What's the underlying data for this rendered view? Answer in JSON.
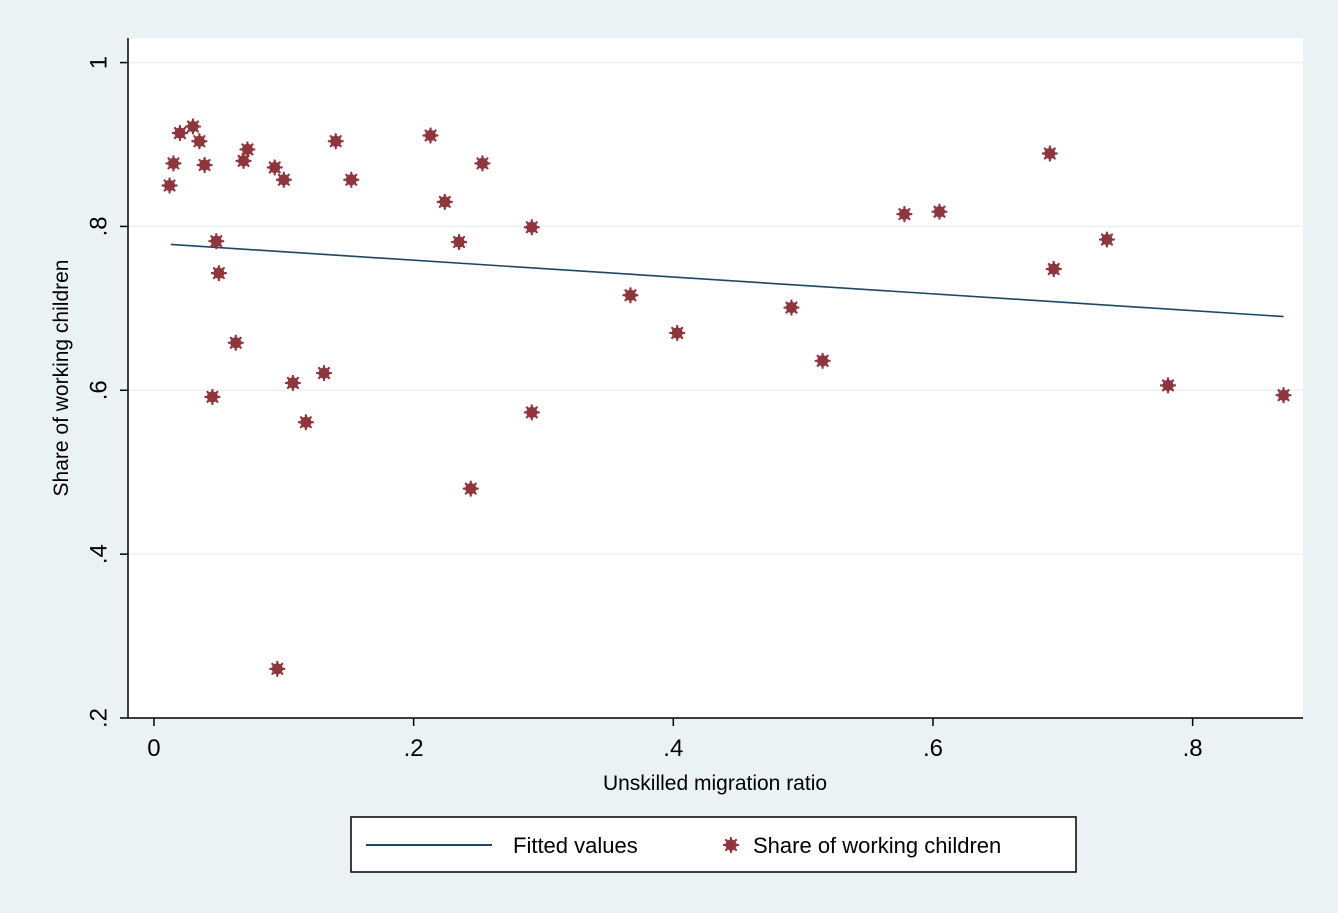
{
  "chart_data": {
    "type": "scatter",
    "title": "",
    "xlabel": "Unskilled migration ratio",
    "ylabel": "Share of working children",
    "xlim": [
      -0.02,
      0.885
    ],
    "ylim": [
      0.2,
      1.03
    ],
    "x_ticks": [
      0,
      0.2,
      0.4,
      0.6,
      0.8
    ],
    "x_tick_labels": [
      "0",
      ".2",
      ".4",
      ".6",
      ".8"
    ],
    "y_ticks": [
      0.2,
      0.4,
      0.6,
      0.8,
      1.0
    ],
    "y_tick_labels": [
      ".2",
      ".4",
      ".6",
      ".8",
      "1"
    ],
    "grid": "horizontal",
    "legend_position": "bottom",
    "colors": {
      "plot_bg": "#ffffff",
      "outer_bg": "#eaf2f3",
      "fit_line": "#1a476f",
      "points": "#90353b",
      "grid": "#eaf2f3"
    },
    "series": [
      {
        "name": "Fitted values",
        "kind": "line",
        "x": [
          0.013,
          0.87
        ],
        "y": [
          0.778,
          0.69
        ]
      },
      {
        "name": "Share of working children",
        "kind": "scatter",
        "x": [
          0.012,
          0.015,
          0.02,
          0.03,
          0.035,
          0.039,
          0.045,
          0.048,
          0.05,
          0.063,
          0.069,
          0.072,
          0.093,
          0.095,
          0.1,
          0.107,
          0.117,
          0.131,
          0.14,
          0.152,
          0.213,
          0.224,
          0.235,
          0.244,
          0.253,
          0.291,
          0.291,
          0.367,
          0.403,
          0.491,
          0.515,
          0.578,
          0.605,
          0.69,
          0.693,
          0.734,
          0.781,
          0.87
        ],
        "y": [
          0.85,
          0.877,
          0.914,
          0.922,
          0.904,
          0.875,
          0.592,
          0.782,
          0.743,
          0.658,
          0.88,
          0.894,
          0.872,
          0.26,
          0.857,
          0.609,
          0.561,
          0.621,
          0.904,
          0.857,
          0.911,
          0.83,
          0.781,
          0.48,
          0.877,
          0.799,
          0.573,
          0.716,
          0.67,
          0.701,
          0.636,
          0.815,
          0.818,
          0.889,
          0.748,
          0.784,
          0.606,
          0.594
        ]
      }
    ]
  }
}
